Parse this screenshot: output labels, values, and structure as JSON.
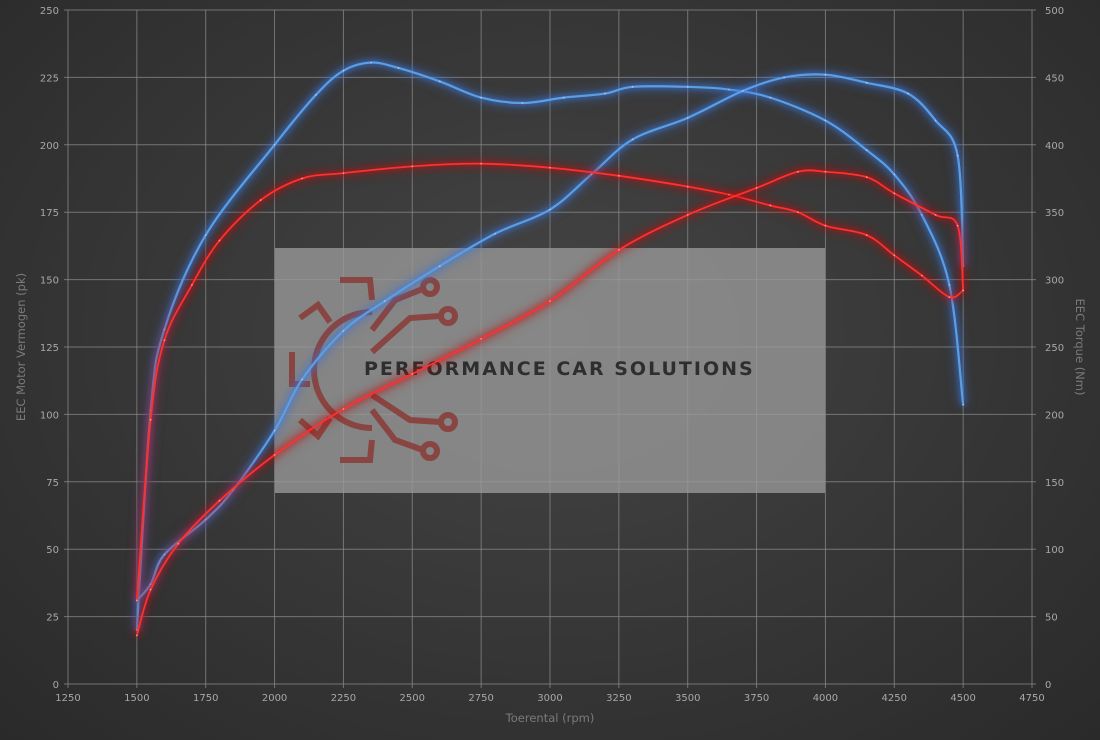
{
  "chart_data": {
    "type": "line",
    "xlabel": "Toerental (rpm)",
    "ylabel_left": "EEC Motor Vermogen (pk)",
    "ylabel_right": "EEC Torque (Nm)",
    "xlim": [
      1250,
      4750
    ],
    "ylim_left": [
      0,
      250
    ],
    "ylim_right": [
      0,
      500
    ],
    "x_ticks": [
      "1250",
      "1500",
      "1750",
      "2000",
      "2250",
      "2500",
      "2750",
      "3000",
      "3250",
      "3500",
      "3750",
      "4000",
      "4250",
      "4500",
      "4750"
    ],
    "y_left_ticks": [
      "0",
      "25",
      "50",
      "75",
      "100",
      "125",
      "150",
      "175",
      "200",
      "225",
      "250"
    ],
    "y_right_ticks": [
      "0",
      "50",
      "100",
      "150",
      "200",
      "250",
      "300",
      "350",
      "400",
      "450",
      "500"
    ],
    "grid": true,
    "watermark": "PERFORMANCE CAR SOLUTIONS",
    "colors": {
      "tuned": "#5b9ee8",
      "stock": "#ff3030",
      "watermark_box": "#9a9a9a",
      "logo": "#8a3a36"
    },
    "series": [
      {
        "axis": "right",
        "color": "tuned",
        "x": [
          1500,
          1550,
          1600,
          1750,
          2000,
          2150,
          2250,
          2350,
          2450,
          2600,
          2750,
          2900,
          3050,
          3200,
          3300,
          3500,
          3650,
          3800,
          4000,
          4150,
          4250,
          4350,
          4450,
          4500
        ],
        "values": [
          40,
          203,
          263,
          333,
          400,
          437,
          455,
          461,
          457,
          447,
          435,
          431,
          435,
          438,
          443,
          443,
          441,
          435,
          418,
          396,
          378,
          348,
          296,
          207
        ]
      },
      {
        "axis": "left",
        "color": "tuned",
        "x": [
          1500,
          1550,
          1600,
          1750,
          1850,
          2000,
          2100,
          2250,
          2400,
          2600,
          2800,
          3000,
          3150,
          3300,
          3500,
          3700,
          3850,
          4000,
          4150,
          4300,
          4400,
          4480,
          4500
        ],
        "values": [
          31,
          37,
          48,
          61,
          72,
          94,
          113,
          131,
          142,
          155,
          167,
          176,
          189,
          202,
          210,
          220,
          225,
          226,
          223,
          219,
          209,
          196,
          155
        ]
      },
      {
        "axis": "right",
        "color": "stock",
        "x": [
          1500,
          1550,
          1600,
          1700,
          1800,
          1950,
          2100,
          2250,
          2500,
          2750,
          3000,
          3250,
          3500,
          3650,
          3800,
          3900,
          4000,
          4150,
          4250,
          4350,
          4450,
          4500
        ],
        "values": [
          62,
          196,
          255,
          296,
          329,
          359,
          375,
          379,
          384,
          386,
          383,
          377,
          369,
          363,
          355,
          350,
          340,
          333,
          318,
          303,
          287,
          292
        ]
      },
      {
        "axis": "left",
        "color": "stock",
        "x": [
          1500,
          1550,
          1650,
          1800,
          2000,
          2250,
          2500,
          2750,
          3000,
          3250,
          3500,
          3750,
          3900,
          4000,
          4150,
          4250,
          4400,
          4480,
          4500
        ],
        "values": [
          18,
          35,
          52,
          68,
          85,
          102,
          115,
          128,
          142,
          161,
          174,
          184,
          190,
          190,
          188,
          182,
          174,
          170,
          146
        ]
      }
    ]
  }
}
